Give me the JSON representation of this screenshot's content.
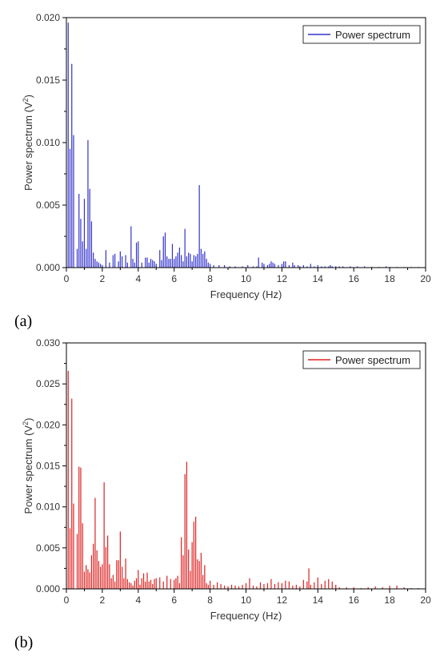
{
  "chart_data": [
    {
      "type": "bar",
      "panel_label": "(a)",
      "xlabel": "Frequency (Hz)",
      "ylabel_main": "Power spectrum (V",
      "ylabel_sup": "2",
      "ylabel_end": ")",
      "legend": "Power spectrum",
      "legend_position": "top-right",
      "color": "#3333cc",
      "xlim": [
        0,
        20
      ],
      "ylim": [
        0,
        0.02
      ],
      "xticks": [
        "0",
        "2",
        "4",
        "6",
        "8",
        "10",
        "12",
        "14",
        "16",
        "18",
        "20"
      ],
      "yticks": [
        "0.000",
        "0.005",
        "0.010",
        "0.015",
        "0.020"
      ],
      "grid": false,
      "x": [
        0.1,
        0.2,
        0.3,
        0.4,
        0.6,
        0.7,
        0.8,
        0.9,
        1.0,
        1.1,
        1.2,
        1.3,
        1.4,
        1.5,
        1.6,
        1.7,
        1.8,
        1.9,
        2.0,
        2.2,
        2.4,
        2.6,
        2.7,
        2.9,
        3.0,
        3.1,
        3.3,
        3.4,
        3.6,
        3.7,
        3.8,
        3.9,
        4.0,
        4.2,
        4.4,
        4.5,
        4.6,
        4.7,
        4.8,
        4.9,
        5.0,
        5.2,
        5.3,
        5.4,
        5.5,
        5.6,
        5.7,
        5.8,
        5.9,
        6.0,
        6.1,
        6.2,
        6.3,
        6.4,
        6.5,
        6.6,
        6.7,
        6.8,
        6.9,
        7.0,
        7.1,
        7.2,
        7.3,
        7.4,
        7.5,
        7.6,
        7.7,
        7.8,
        7.9,
        8.0,
        8.2,
        8.5,
        8.8,
        9.1,
        9.4,
        9.8,
        10.1,
        10.4,
        10.6,
        10.7,
        10.9,
        11.0,
        11.2,
        11.3,
        11.4,
        11.5,
        11.6,
        11.8,
        12.0,
        12.1,
        12.2,
        12.4,
        12.6,
        12.7,
        12.9,
        13.0,
        13.2,
        13.4,
        13.6,
        13.8,
        14.0,
        14.2,
        14.4,
        14.6,
        14.7,
        14.8,
        15.0,
        15.2,
        15.4,
        15.8,
        16.2,
        16.6,
        17.0,
        17.4,
        17.8,
        18.0,
        18.4,
        18.8,
        19.2,
        19.6
      ],
      "values": [
        0.0196,
        0.0095,
        0.0163,
        0.0106,
        0.0015,
        0.0059,
        0.0039,
        0.0021,
        0.0055,
        0.0015,
        0.0102,
        0.0063,
        0.0037,
        0.0012,
        0.0007,
        0.0005,
        0.0004,
        0.0003,
        0.0002,
        0.0014,
        0.0004,
        0.001,
        0.0011,
        0.0005,
        0.0013,
        0.0009,
        0.001,
        0.0004,
        0.0033,
        0.0007,
        0.0004,
        0.002,
        0.0021,
        0.0004,
        0.0008,
        0.0008,
        0.0004,
        0.0007,
        0.0006,
        0.0005,
        0.0003,
        0.0014,
        0.0006,
        0.0025,
        0.0028,
        0.0009,
        0.0007,
        0.0007,
        0.0019,
        0.0007,
        0.0009,
        0.0012,
        0.0016,
        0.001,
        0.0005,
        0.0031,
        0.0009,
        0.0012,
        0.0011,
        0.0005,
        0.001,
        0.0009,
        0.0011,
        0.0066,
        0.0015,
        0.0011,
        0.0013,
        0.0007,
        0.0004,
        0.0003,
        0.0002,
        0.0002,
        0.0002,
        0.0001,
        0.0001,
        0.0001,
        0.0002,
        0.0001,
        0.0001,
        0.0008,
        0.0004,
        0.0003,
        0.0002,
        0.0003,
        0.0005,
        0.0004,
        0.0003,
        0.0002,
        0.0003,
        0.0005,
        0.0005,
        0.0002,
        0.0004,
        0.0002,
        0.0002,
        0.0001,
        0.0002,
        0.0001,
        0.0003,
        0.0001,
        0.0002,
        0.0001,
        0.0001,
        0.0001,
        0.0002,
        0.0001,
        0.0001,
        0.0001,
        0.0001,
        0.0001,
        0.0001,
        0.0001,
        5e-05,
        5e-05,
        0.0001,
        5e-05,
        5e-05,
        5e-05,
        5e-05,
        5e-05
      ]
    },
    {
      "type": "bar",
      "panel_label": "(b)",
      "xlabel": "Frequency (Hz)",
      "ylabel_main": "Power spectrum (V",
      "ylabel_sup": "2",
      "ylabel_end": ")",
      "legend": "Power spectrum",
      "legend_position": "top-right",
      "color": "#dd2222",
      "xlim": [
        0,
        20
      ],
      "ylim": [
        0,
        0.03
      ],
      "xticks": [
        "0",
        "2",
        "4",
        "6",
        "8",
        "10",
        "12",
        "14",
        "16",
        "18",
        "20"
      ],
      "yticks": [
        "0.000",
        "0.005",
        "0.010",
        "0.015",
        "0.020",
        "0.025",
        "0.030"
      ],
      "grid": false,
      "x": [
        0.1,
        0.2,
        0.3,
        0.4,
        0.6,
        0.7,
        0.8,
        0.9,
        1.0,
        1.1,
        1.2,
        1.3,
        1.4,
        1.5,
        1.6,
        1.7,
        1.8,
        1.9,
        2.0,
        2.1,
        2.2,
        2.3,
        2.4,
        2.5,
        2.6,
        2.7,
        2.8,
        2.9,
        3.0,
        3.1,
        3.2,
        3.3,
        3.4,
        3.5,
        3.6,
        3.7,
        3.8,
        3.9,
        4.0,
        4.1,
        4.2,
        4.3,
        4.4,
        4.5,
        4.6,
        4.7,
        4.8,
        4.9,
        5.0,
        5.2,
        5.4,
        5.6,
        5.8,
        6.0,
        6.1,
        6.2,
        6.3,
        6.4,
        6.5,
        6.6,
        6.7,
        6.8,
        6.9,
        7.0,
        7.1,
        7.2,
        7.3,
        7.4,
        7.5,
        7.6,
        7.7,
        7.8,
        7.9,
        8.0,
        8.2,
        8.4,
        8.6,
        8.8,
        9.0,
        9.2,
        9.4,
        9.6,
        9.8,
        10.0,
        10.2,
        10.4,
        10.6,
        10.8,
        11.0,
        11.2,
        11.4,
        11.6,
        11.8,
        12.0,
        12.2,
        12.4,
        12.6,
        12.8,
        13.0,
        13.2,
        13.4,
        13.5,
        13.6,
        13.8,
        14.0,
        14.2,
        14.4,
        14.6,
        14.8,
        15.0,
        15.2,
        15.6,
        16.0,
        16.4,
        16.8,
        17.2,
        17.6,
        18.0,
        18.4,
        18.8,
        19.2,
        19.6
      ],
      "values": [
        0.0266,
        0.0074,
        0.0232,
        0.0104,
        0.0067,
        0.0149,
        0.0148,
        0.008,
        0.0021,
        0.0029,
        0.0024,
        0.002,
        0.0041,
        0.0055,
        0.0111,
        0.0047,
        0.0034,
        0.0027,
        0.003,
        0.013,
        0.0051,
        0.0065,
        0.003,
        0.0013,
        0.0017,
        0.0009,
        0.0035,
        0.0035,
        0.007,
        0.0027,
        0.0013,
        0.0037,
        0.0012,
        0.0008,
        0.0007,
        0.0004,
        0.001,
        0.0013,
        0.0023,
        0.0005,
        0.0013,
        0.0019,
        0.0009,
        0.002,
        0.0009,
        0.0011,
        0.0006,
        0.0012,
        0.0013,
        0.0014,
        0.0009,
        0.0016,
        0.0012,
        0.0011,
        0.0013,
        0.0016,
        0.0007,
        0.0063,
        0.0041,
        0.014,
        0.0155,
        0.0048,
        0.0022,
        0.0057,
        0.0082,
        0.0088,
        0.0036,
        0.0034,
        0.0044,
        0.0017,
        0.0029,
        0.0007,
        0.0005,
        0.001,
        0.0005,
        0.0008,
        0.0006,
        0.0004,
        0.0003,
        0.0005,
        0.0004,
        0.0003,
        0.0005,
        0.0007,
        0.0013,
        0.0004,
        0.0003,
        0.0008,
        0.0006,
        0.0007,
        0.0012,
        0.0006,
        0.0008,
        0.0007,
        0.001,
        0.0009,
        0.0004,
        0.0005,
        0.0003,
        0.0011,
        0.0009,
        0.0025,
        0.0005,
        0.0008,
        0.0014,
        0.0006,
        0.001,
        0.0012,
        0.0009,
        0.0005,
        0.0002,
        0.0002,
        0.0002,
        0.0001,
        0.0002,
        0.0003,
        0.0002,
        0.0004,
        0.0004,
        0.0002,
        0.0001,
        0.0001
      ]
    }
  ]
}
